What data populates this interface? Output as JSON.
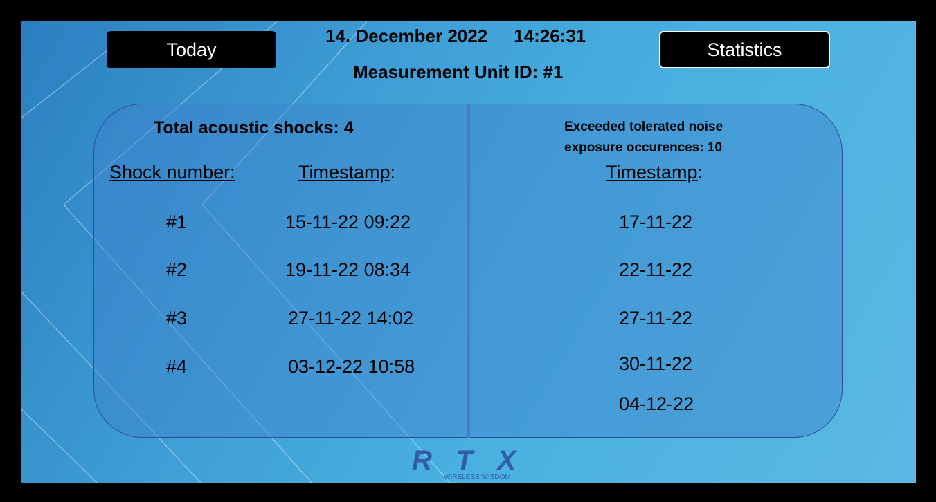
{
  "header": {
    "today_button": "Today",
    "statistics_button": "Statistics",
    "date": "14. December 2022",
    "time": "14:26:31",
    "unit": "Measurement Unit ID: #1"
  },
  "left": {
    "total": "Total acoustic shocks: 4",
    "shock_header": "Shock number:",
    "timestamp_header": "Timestamp",
    "colon": ":",
    "rows": [
      {
        "num": "#1",
        "ts": "15-11-22 09:22"
      },
      {
        "num": "#2",
        "ts": "19-11-22 08:34"
      },
      {
        "num": "#3",
        "ts": "27-11-22 14:02"
      },
      {
        "num": "#4",
        "ts": "03-12-22 10:58"
      }
    ]
  },
  "right": {
    "line1": "Exceeded tolerated noise",
    "line2": "exposure occurences: 10",
    "timestamp_header": "Timestamp",
    "colon": ":",
    "dates": [
      "17-11-22",
      "22-11-22",
      "27-11-22",
      "30-11-22",
      "04-12-22"
    ]
  },
  "logo": {
    "brand": "RTX",
    "tagline": "WIRELESS WISDOM",
    "color": "#2f5da8"
  }
}
